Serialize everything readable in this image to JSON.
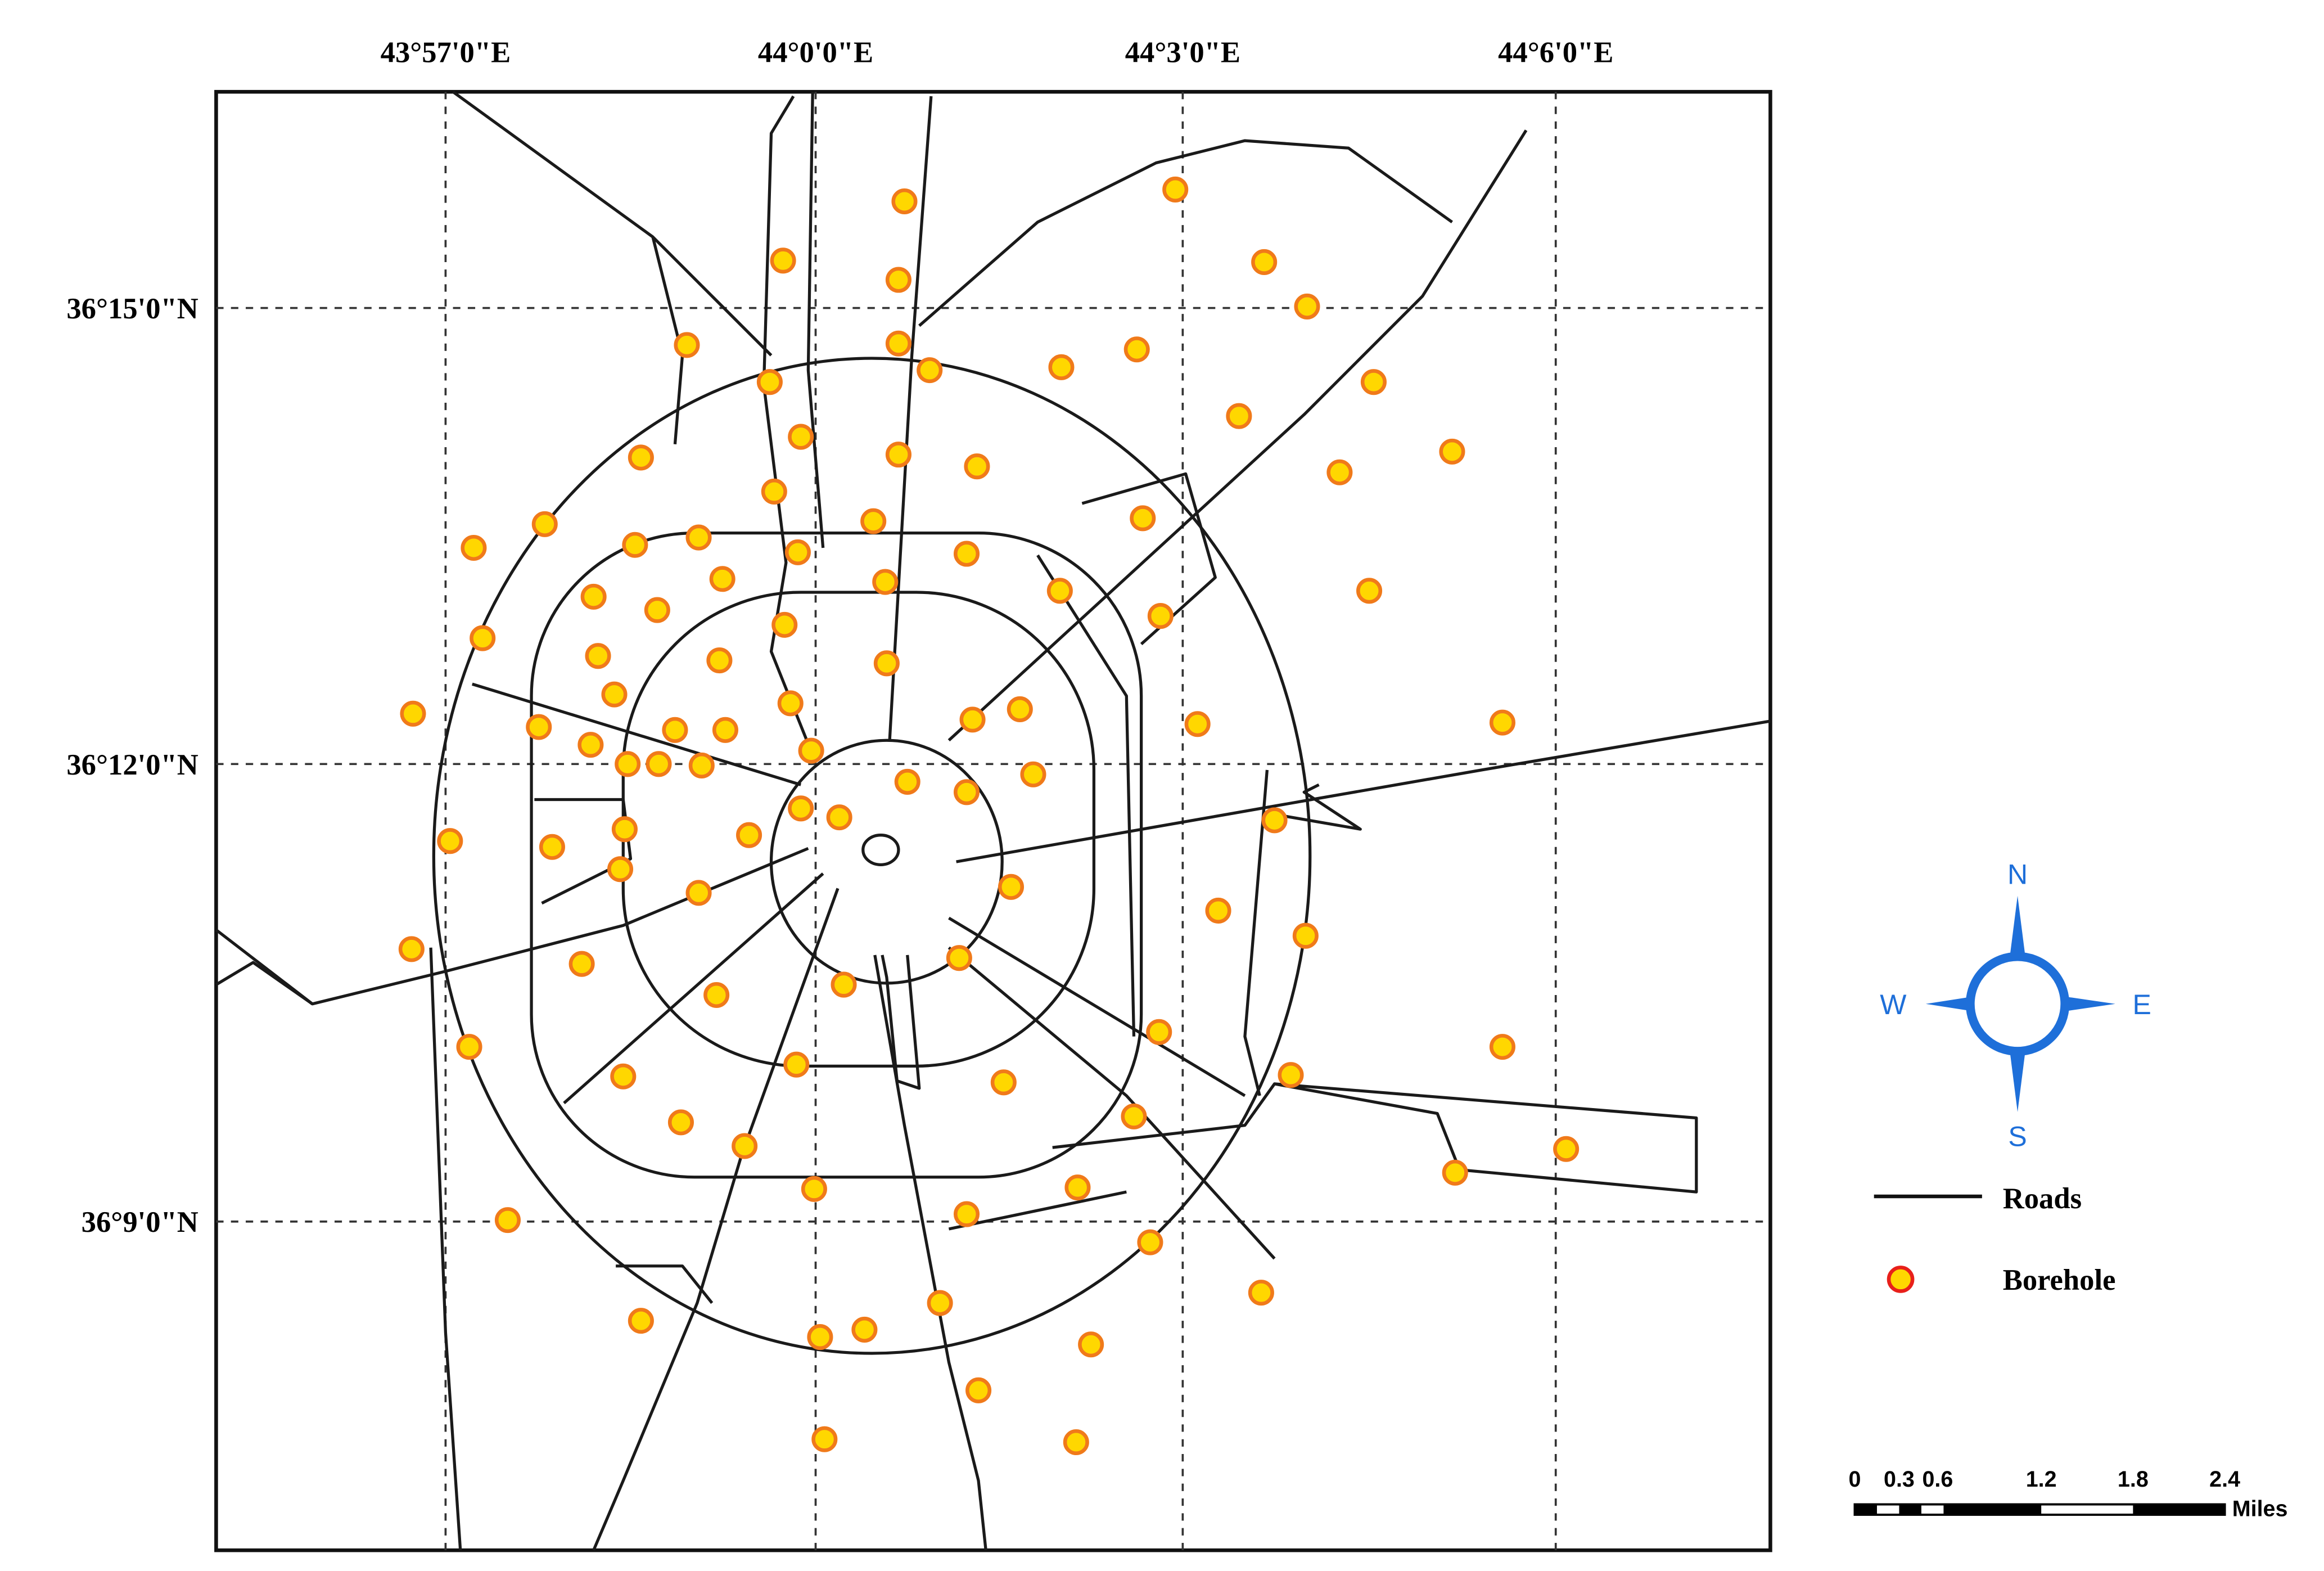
{
  "map": {
    "lon_labels": [
      "43°57'0\"E",
      "44°0'0\"E",
      "44°3'0\"E",
      "44°6'0\"E"
    ],
    "lat_labels": [
      "36°15'0\"N",
      "36°12'0\"N",
      "36°9'0\"N"
    ],
    "compass": {
      "n": "N",
      "s": "S",
      "w": "W",
      "e": "E"
    },
    "legend": {
      "roads": "Roads",
      "borehole": "Borehole"
    },
    "scale_bar": {
      "labels": [
        0,
        0.3,
        0.6,
        1.2,
        1.8,
        2.4
      ],
      "unit": "Miles"
    }
  }
}
